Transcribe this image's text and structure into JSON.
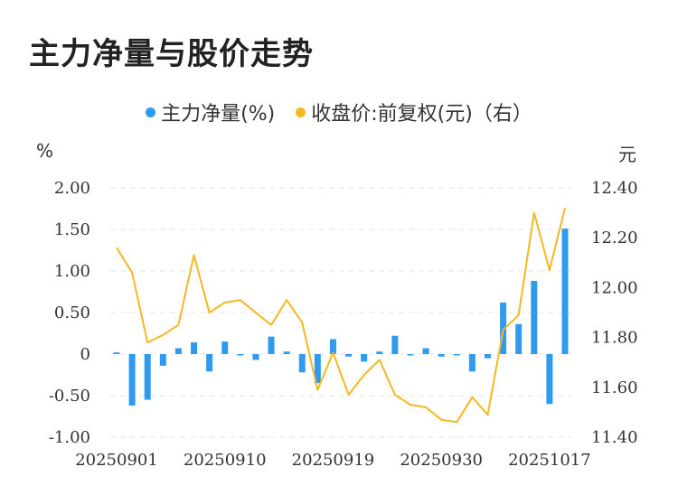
{
  "title": "主力净量与股价走势",
  "legend": {
    "bar_label": "主力净量(%)",
    "line_label": "收盘价:前复权(元)（右）"
  },
  "units": {
    "left": "%",
    "right": "元"
  },
  "colors": {
    "bar": "#2e9bf0",
    "line": "#f5b820",
    "grid": "#e6e6e6"
  },
  "chart_data": {
    "type": "bar+line",
    "x_tick_labels": [
      "20250901",
      "20250910",
      "20250919",
      "20250930",
      "20251017"
    ],
    "left_axis": {
      "unit": "%",
      "range": [
        -1.0,
        2.0
      ],
      "ticks": [
        "2.00",
        "1.50",
        "1.00",
        "0.50",
        "0",
        "-0.50",
        "-1.00"
      ],
      "tick_values": [
        2.0,
        1.5,
        1.0,
        0.5,
        0,
        -0.5,
        -1.0
      ]
    },
    "right_axis": {
      "unit": "元",
      "range": [
        11.4,
        12.4
      ],
      "ticks": [
        "12.40",
        "12.20",
        "12.00",
        "11.80",
        "11.60",
        "11.40"
      ],
      "tick_values": [
        12.4,
        12.2,
        12.0,
        11.8,
        11.6,
        11.4
      ]
    },
    "grid": true,
    "series": [
      {
        "name": "主力净量(%)",
        "type": "bar",
        "axis": "left",
        "values": [
          0.02,
          -0.62,
          -0.55,
          -0.14,
          0.07,
          0.14,
          -0.21,
          0.15,
          0.0,
          -0.07,
          0.21,
          0.03,
          -0.22,
          -0.35,
          0.18,
          -0.03,
          -0.09,
          0.03,
          0.22,
          0.0,
          0.07,
          -0.03,
          0.0,
          -0.21,
          -0.05,
          0.62,
          0.36,
          0.88,
          -0.6,
          1.51
        ]
      },
      {
        "name": "收盘价:前复权(元)（右）",
        "type": "line",
        "axis": "right",
        "values": [
          12.16,
          12.06,
          11.78,
          11.81,
          11.85,
          12.13,
          11.9,
          11.94,
          11.95,
          11.9,
          11.85,
          11.95,
          11.86,
          11.59,
          11.74,
          11.57,
          11.65,
          11.71,
          11.57,
          11.53,
          11.52,
          11.47,
          11.46,
          11.56,
          11.49,
          11.83,
          11.89,
          12.3,
          12.07,
          12.32
        ]
      }
    ]
  }
}
